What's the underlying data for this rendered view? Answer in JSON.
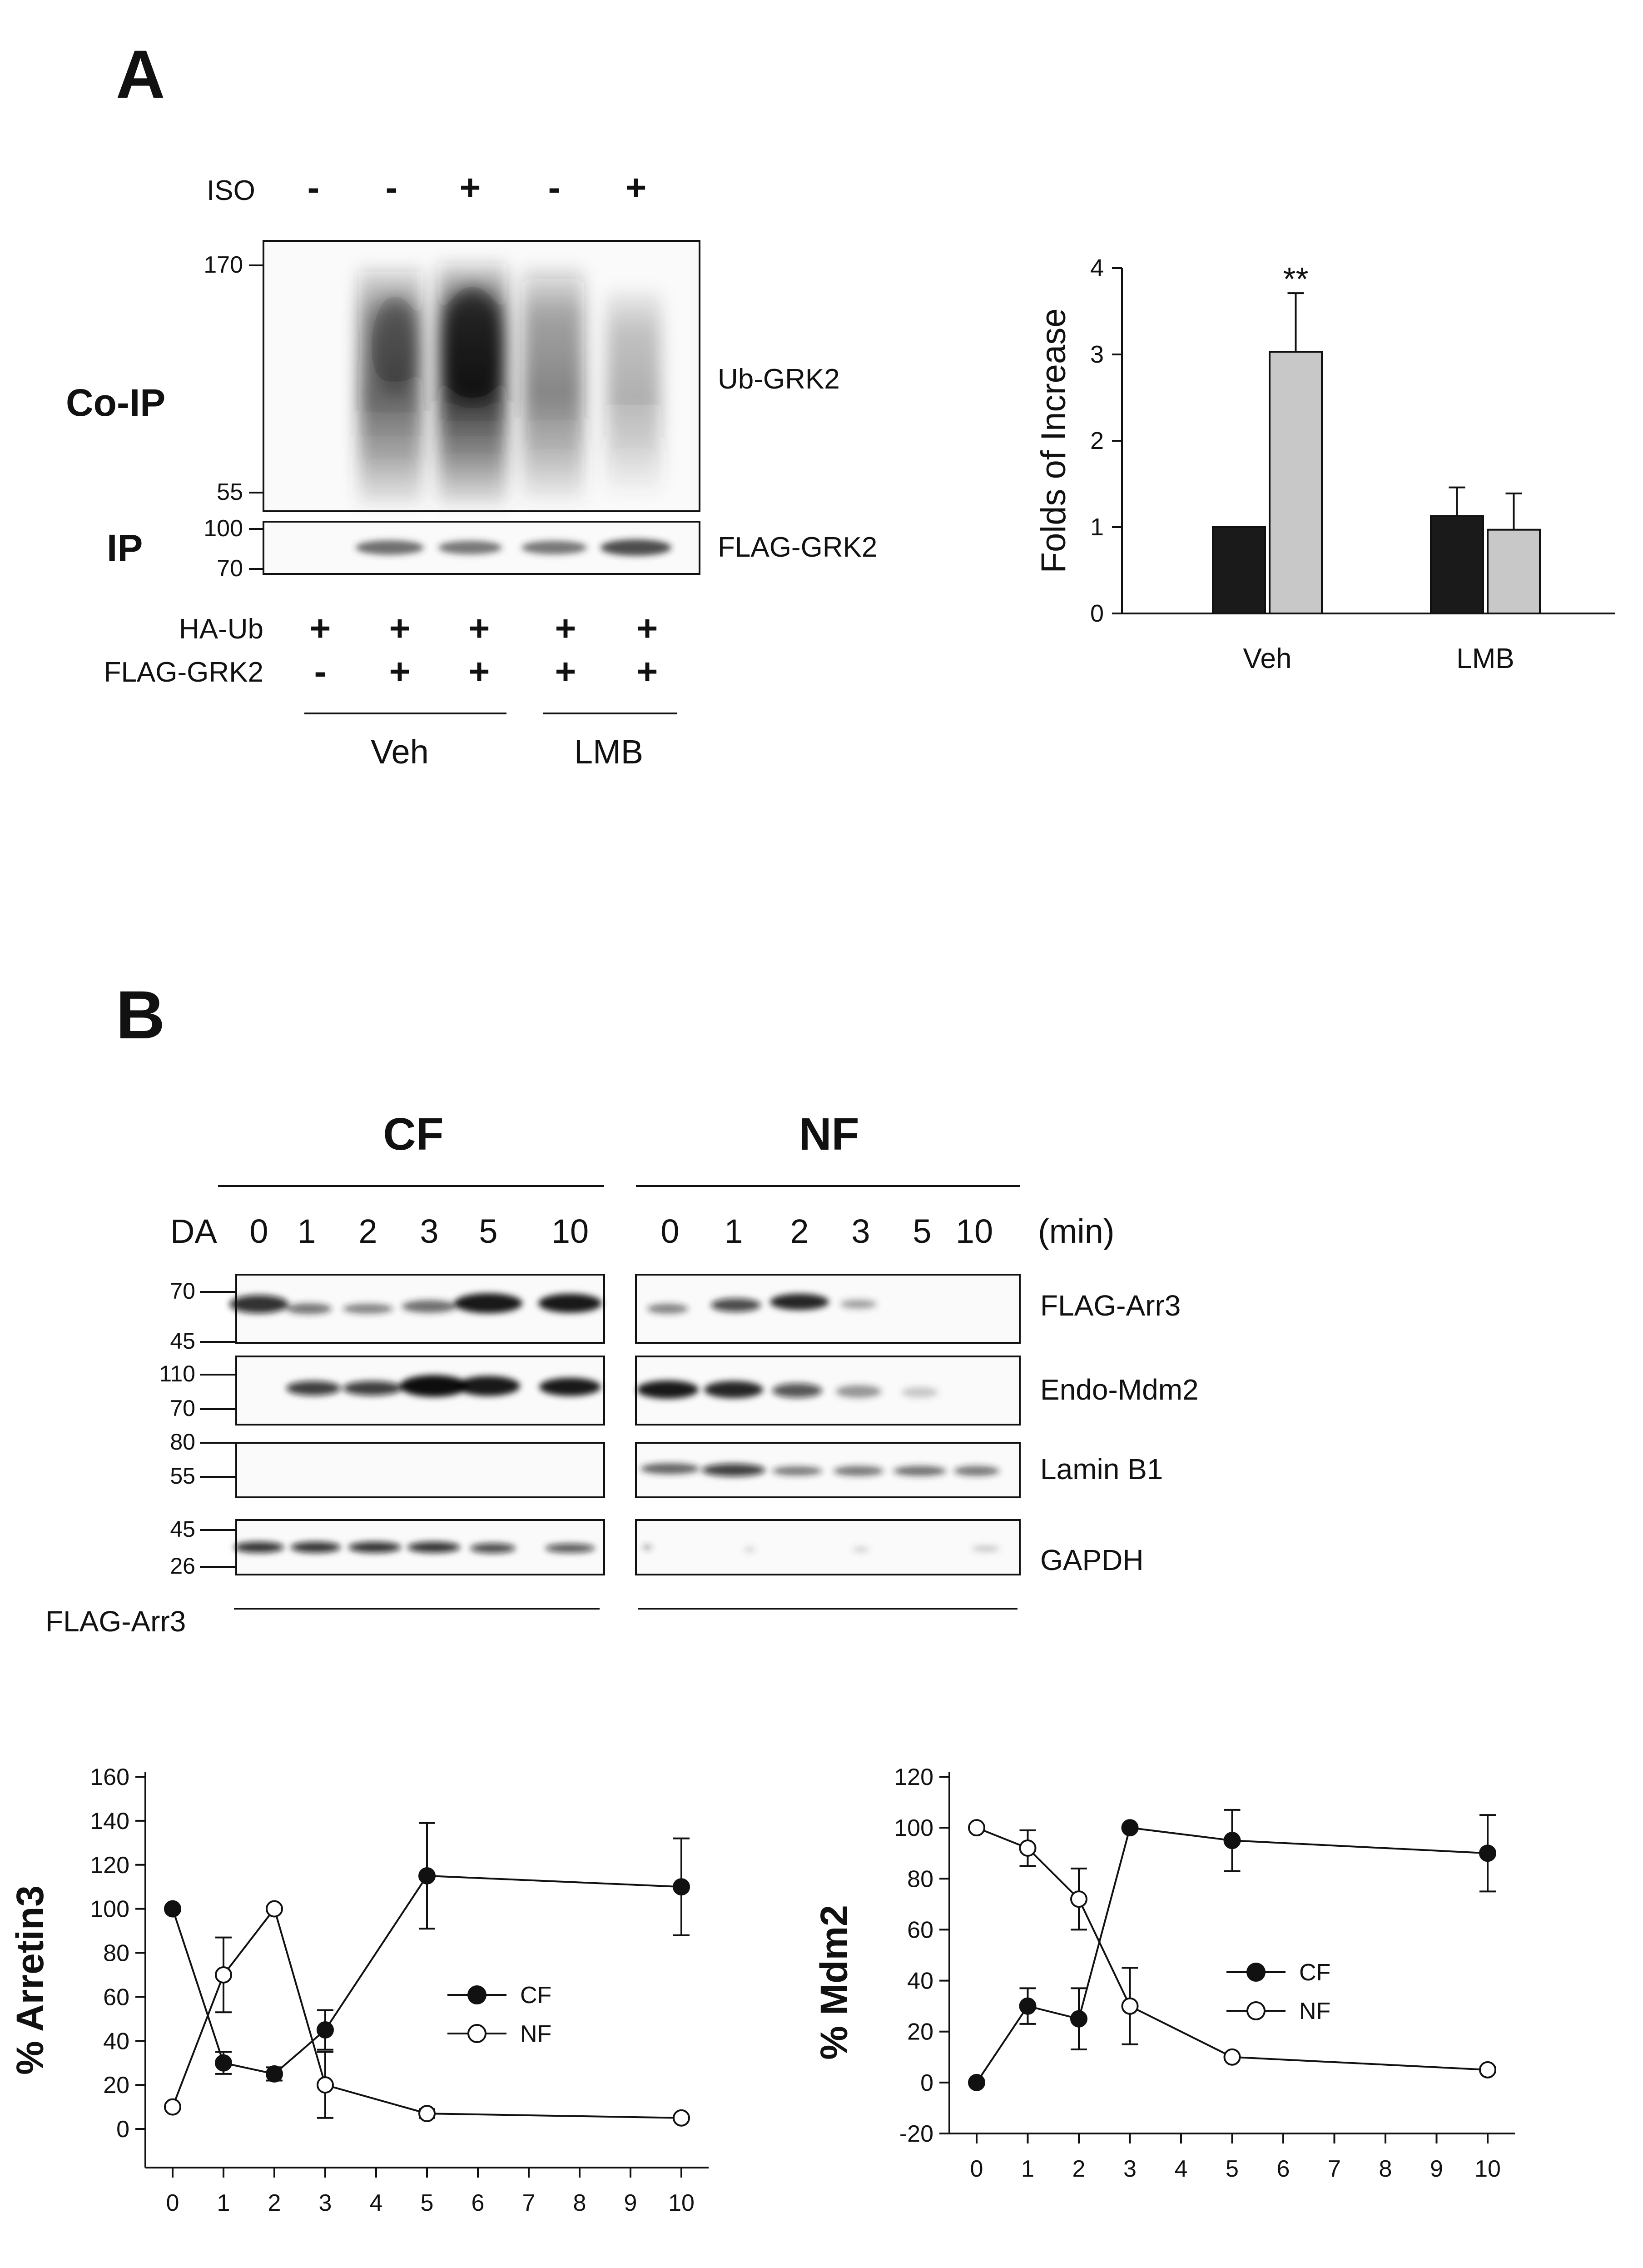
{
  "panelA": {
    "letter": "A",
    "iso_label": "ISO",
    "iso_signs": [
      "-",
      "-",
      "+",
      "-",
      "+"
    ],
    "coip_label": "Co-IP",
    "ip_label": "IP",
    "coip_markers": [
      "170",
      "55"
    ],
    "ip_markers": [
      "100",
      "70"
    ],
    "band_labels": [
      "Ub-GRK2",
      "FLAG-GRK2"
    ],
    "haub_label": "HA-Ub",
    "haub_signs": [
      "+",
      "+",
      "+",
      "+",
      "+"
    ],
    "flaggrk2_label": "FLAG-GRK2",
    "flaggrk2_signs": [
      "-",
      "+",
      "+",
      "+",
      "+"
    ],
    "groups": [
      "Veh",
      "LMB"
    ]
  },
  "panelB": {
    "letter": "B",
    "fraction_labels": [
      "CF",
      "NF"
    ],
    "da_label": "DA",
    "time_labels": [
      "0",
      "1",
      "2",
      "3",
      "5",
      "10"
    ],
    "time_unit": "(min)",
    "blot_labels": [
      "FLAG-Arr3",
      "Endo-Mdm2",
      "Lamin B1",
      "GAPDH"
    ],
    "markers": {
      "arr3": [
        "70",
        "45"
      ],
      "mdm2": [
        "110",
        "70"
      ],
      "lamin": [
        "80",
        "55"
      ],
      "gapdh": [
        "45",
        "26"
      ]
    },
    "bottom_label": "FLAG-Arr3"
  },
  "chart_data": [
    {
      "type": "bar",
      "categories": [
        "Veh",
        "LMB"
      ],
      "series": [
        {
          "values": [
            1.0,
            1.13
          ],
          "errors": [
            0,
            0.33
          ],
          "color": "#1a1a1a"
        },
        {
          "values": [
            3.03,
            0.97
          ],
          "errors": [
            0.68,
            0.42
          ],
          "color": "#c8c8c8"
        }
      ],
      "ylabel": "Folds of Increase",
      "ylim": [
        0,
        4
      ],
      "yticks": [
        0,
        1,
        2,
        3,
        4
      ],
      "annotation": "**"
    },
    {
      "type": "line",
      "x": [
        0,
        1,
        2,
        3,
        5,
        10
      ],
      "xticks": [
        0,
        1,
        2,
        3,
        4,
        5,
        6,
        7,
        8,
        9,
        10
      ],
      "series": [
        {
          "name": "CF",
          "values": [
            100,
            30,
            25,
            45,
            115,
            110
          ],
          "errors": [
            0,
            5,
            3,
            9,
            24,
            22
          ],
          "marker": "filled"
        },
        {
          "name": "NF",
          "values": [
            10,
            70,
            100,
            20,
            7,
            5
          ],
          "errors": [
            0,
            17,
            0,
            15,
            2,
            1
          ],
          "marker": "open"
        }
      ],
      "ylabel": "% Arretin3",
      "ylim": [
        0,
        160
      ],
      "yticks": [
        0,
        20,
        40,
        60,
        80,
        100,
        120,
        140,
        160
      ],
      "legend": "center-right"
    },
    {
      "type": "line",
      "x": [
        0,
        1,
        2,
        3,
        5,
        10
      ],
      "xticks": [
        0,
        1,
        2,
        3,
        4,
        5,
        6,
        7,
        8,
        9,
        10
      ],
      "series": [
        {
          "name": "CF",
          "values": [
            0,
            30,
            25,
            100,
            95,
            90
          ],
          "errors": [
            0,
            7,
            12,
            0,
            12,
            15
          ],
          "marker": "filled"
        },
        {
          "name": "NF",
          "values": [
            100,
            92,
            72,
            30,
            10,
            5
          ],
          "errors": [
            0,
            7,
            12,
            15,
            1,
            1
          ],
          "marker": "open"
        }
      ],
      "ylabel": "% Mdm2",
      "ylim": [
        -20,
        120
      ],
      "yticks": [
        -20,
        0,
        20,
        40,
        60,
        80,
        100,
        120
      ],
      "legend": "center-right"
    }
  ]
}
